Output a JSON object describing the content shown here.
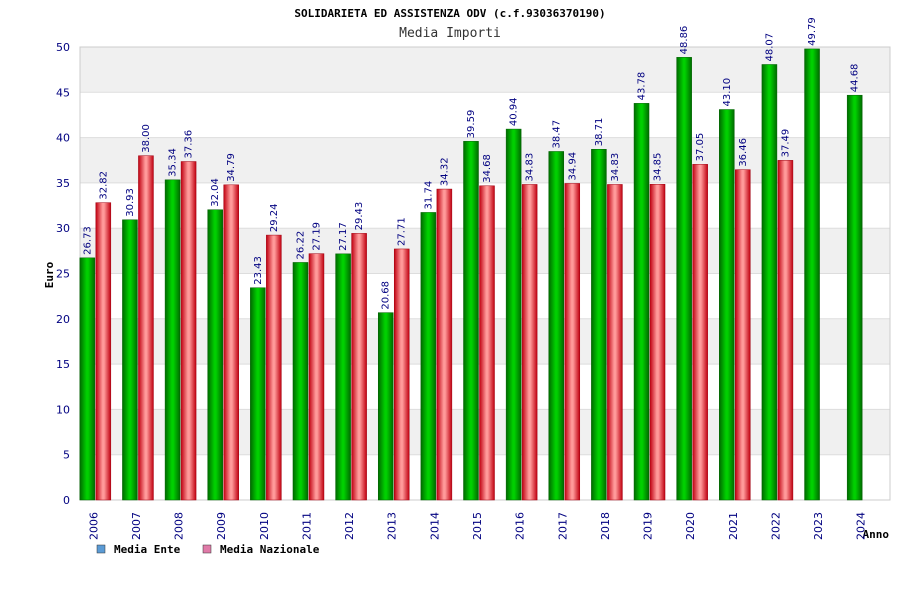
{
  "chart_data": {
    "type": "bar",
    "title": "SOLIDARIETA ED ASSISTENZA ODV (c.f.93036370190)",
    "subtitle": "Media Importi",
    "xlabel": "Anno",
    "ylabel": "Euro",
    "ylim": [
      0,
      50
    ],
    "yticks": [
      "0",
      "5",
      "10",
      "15",
      "20",
      "25",
      "30",
      "35",
      "40",
      "45",
      "50"
    ],
    "categories": [
      "2006",
      "2007",
      "2008",
      "2009",
      "2010",
      "2011",
      "2012",
      "2013",
      "2014",
      "2015",
      "2016",
      "2017",
      "2018",
      "2019",
      "2020",
      "2021",
      "2022",
      "2023",
      "2024"
    ],
    "series": [
      {
        "name": "Media Ente",
        "color": "#00a000",
        "values": [
          26.73,
          30.93,
          35.34,
          32.04,
          23.43,
          26.22,
          27.17,
          20.68,
          31.74,
          39.59,
          40.94,
          38.47,
          38.71,
          43.78,
          48.86,
          43.1,
          48.07,
          49.79,
          44.68
        ],
        "labels": [
          "26.73",
          "30.93",
          "35.34",
          "32.04",
          "23.43",
          "26.22",
          "27.17",
          "20.68",
          "31.74",
          "39.59",
          "40.94",
          "38.47",
          "38.71",
          "43.78",
          "48.86",
          "43.10",
          "48.07",
          "49.79",
          "44.68"
        ]
      },
      {
        "name": "Media Nazionale",
        "color": "#e02030",
        "values": [
          32.82,
          38.0,
          37.36,
          34.79,
          29.24,
          27.19,
          29.43,
          27.71,
          34.32,
          34.68,
          34.83,
          34.94,
          34.83,
          34.85,
          37.05,
          36.46,
          37.49,
          null,
          null
        ],
        "labels": [
          "32.82",
          "38.00",
          "37.36",
          "34.79",
          "29.24",
          "27.19",
          "29.43",
          "27.71",
          "34.32",
          "34.68",
          "34.83",
          "34.94",
          "34.83",
          "34.85",
          "37.05",
          "36.46",
          "37.49",
          null,
          null
        ]
      }
    ],
    "legend": [
      {
        "label": "Media Ente",
        "color": "#5b9bd5"
      },
      {
        "label": "Media Nazionale",
        "color": "#e07aa8"
      }
    ],
    "legend_position": "bottom-left",
    "grid": true
  }
}
